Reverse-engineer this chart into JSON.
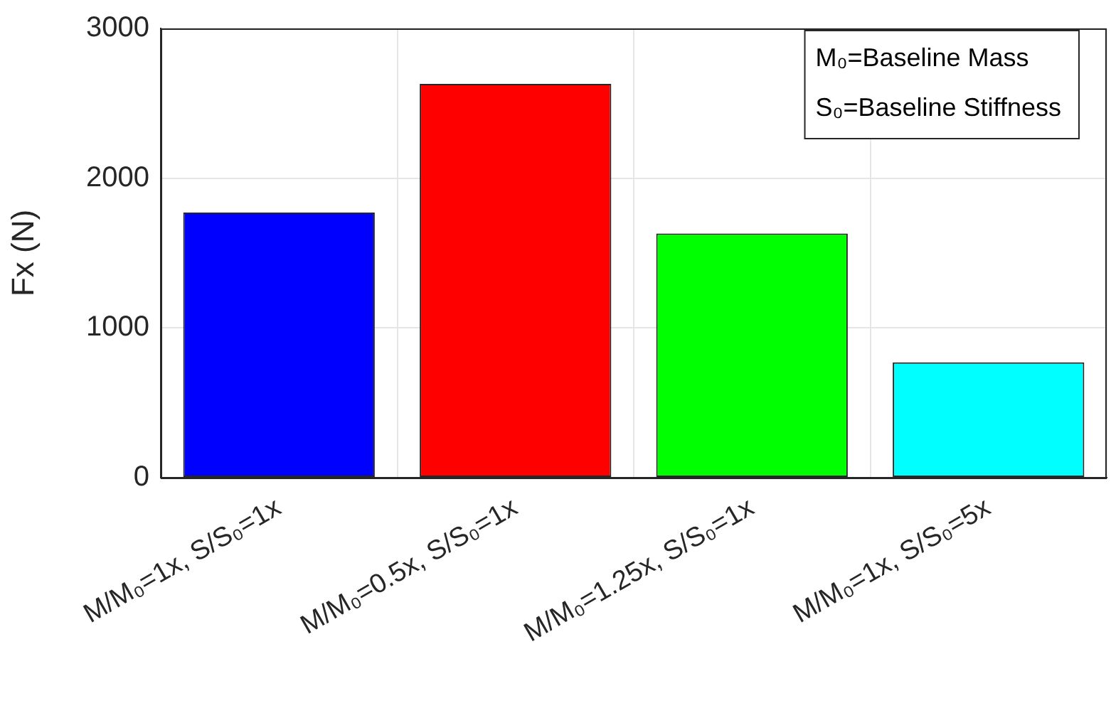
{
  "chart_data": {
    "type": "bar",
    "ylabel": "Fx (N)",
    "categories": [
      "M/M₀=1x, S/S₀=1x",
      "M/M₀=0.5x, S/S₀=1x",
      "M/M₀=1.25x, S/S₀=1x",
      "M/M₀=1x, S/S₀=5x"
    ],
    "values": [
      1770,
      2630,
      1630,
      770
    ],
    "colors": [
      "#0000ff",
      "#ff0000",
      "#00ff00",
      "#00ffff"
    ],
    "ylim": [
      0,
      3000
    ],
    "yticks": [
      0,
      1000,
      2000,
      3000
    ],
    "grid": true,
    "legend": false,
    "annotations": [
      "M₀=Baseline Mass",
      "S₀=Baseline Stiffness"
    ]
  }
}
